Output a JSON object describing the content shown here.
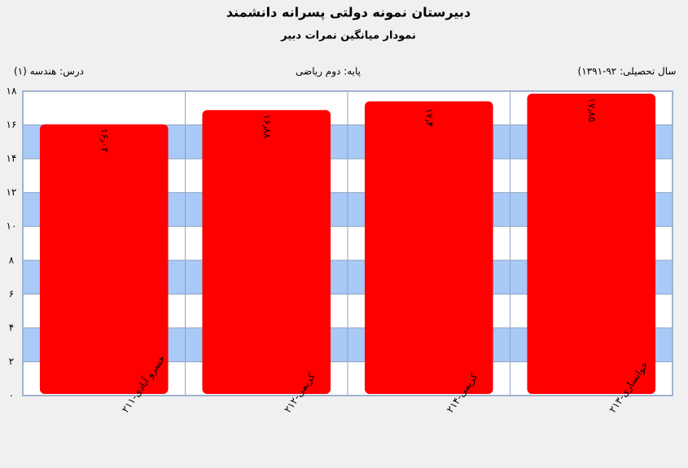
{
  "chart_data": {
    "type": "bar",
    "title": "دبیرستان  نمونه دولتی پسرانه دانشمند",
    "subtitle": "نمودار میانگین نمرات دبیر",
    "info": {
      "lesson": "درس: هندسه (۱)",
      "grade": "پایه: دوم ریاضی",
      "year": "سال تحصیلی: ۹۲-۱۳۹۱)"
    },
    "categories": [
      "خسرو آبادی-۲۱۱",
      "کریمی-۲۱۲",
      "کریمی-۲۱۴",
      "خوانساری-۲۱۳"
    ],
    "values": [
      16.04,
      16.88,
      17.4,
      17.85
    ],
    "value_labels": [
      "۱۶٫۰۴",
      "۱۶٫۸۸",
      "۱۷٫۴",
      "۱۷٫۸۵"
    ],
    "color": "#ff0000",
    "band_color": "#a9c9f7",
    "ylim": [
      0,
      18
    ],
    "yticks": [
      {
        "value": 0,
        "label": "۰"
      },
      {
        "value": 2,
        "label": "۲"
      },
      {
        "value": 4,
        "label": "۴"
      },
      {
        "value": 6,
        "label": "۶"
      },
      {
        "value": 8,
        "label": "۸"
      },
      {
        "value": 10,
        "label": "۱۰"
      },
      {
        "value": 12,
        "label": "۱۲"
      },
      {
        "value": 14,
        "label": "۱۴"
      },
      {
        "value": 16,
        "label": "۱۶"
      },
      {
        "value": 18,
        "label": "۱۸"
      }
    ],
    "grid": true
  }
}
